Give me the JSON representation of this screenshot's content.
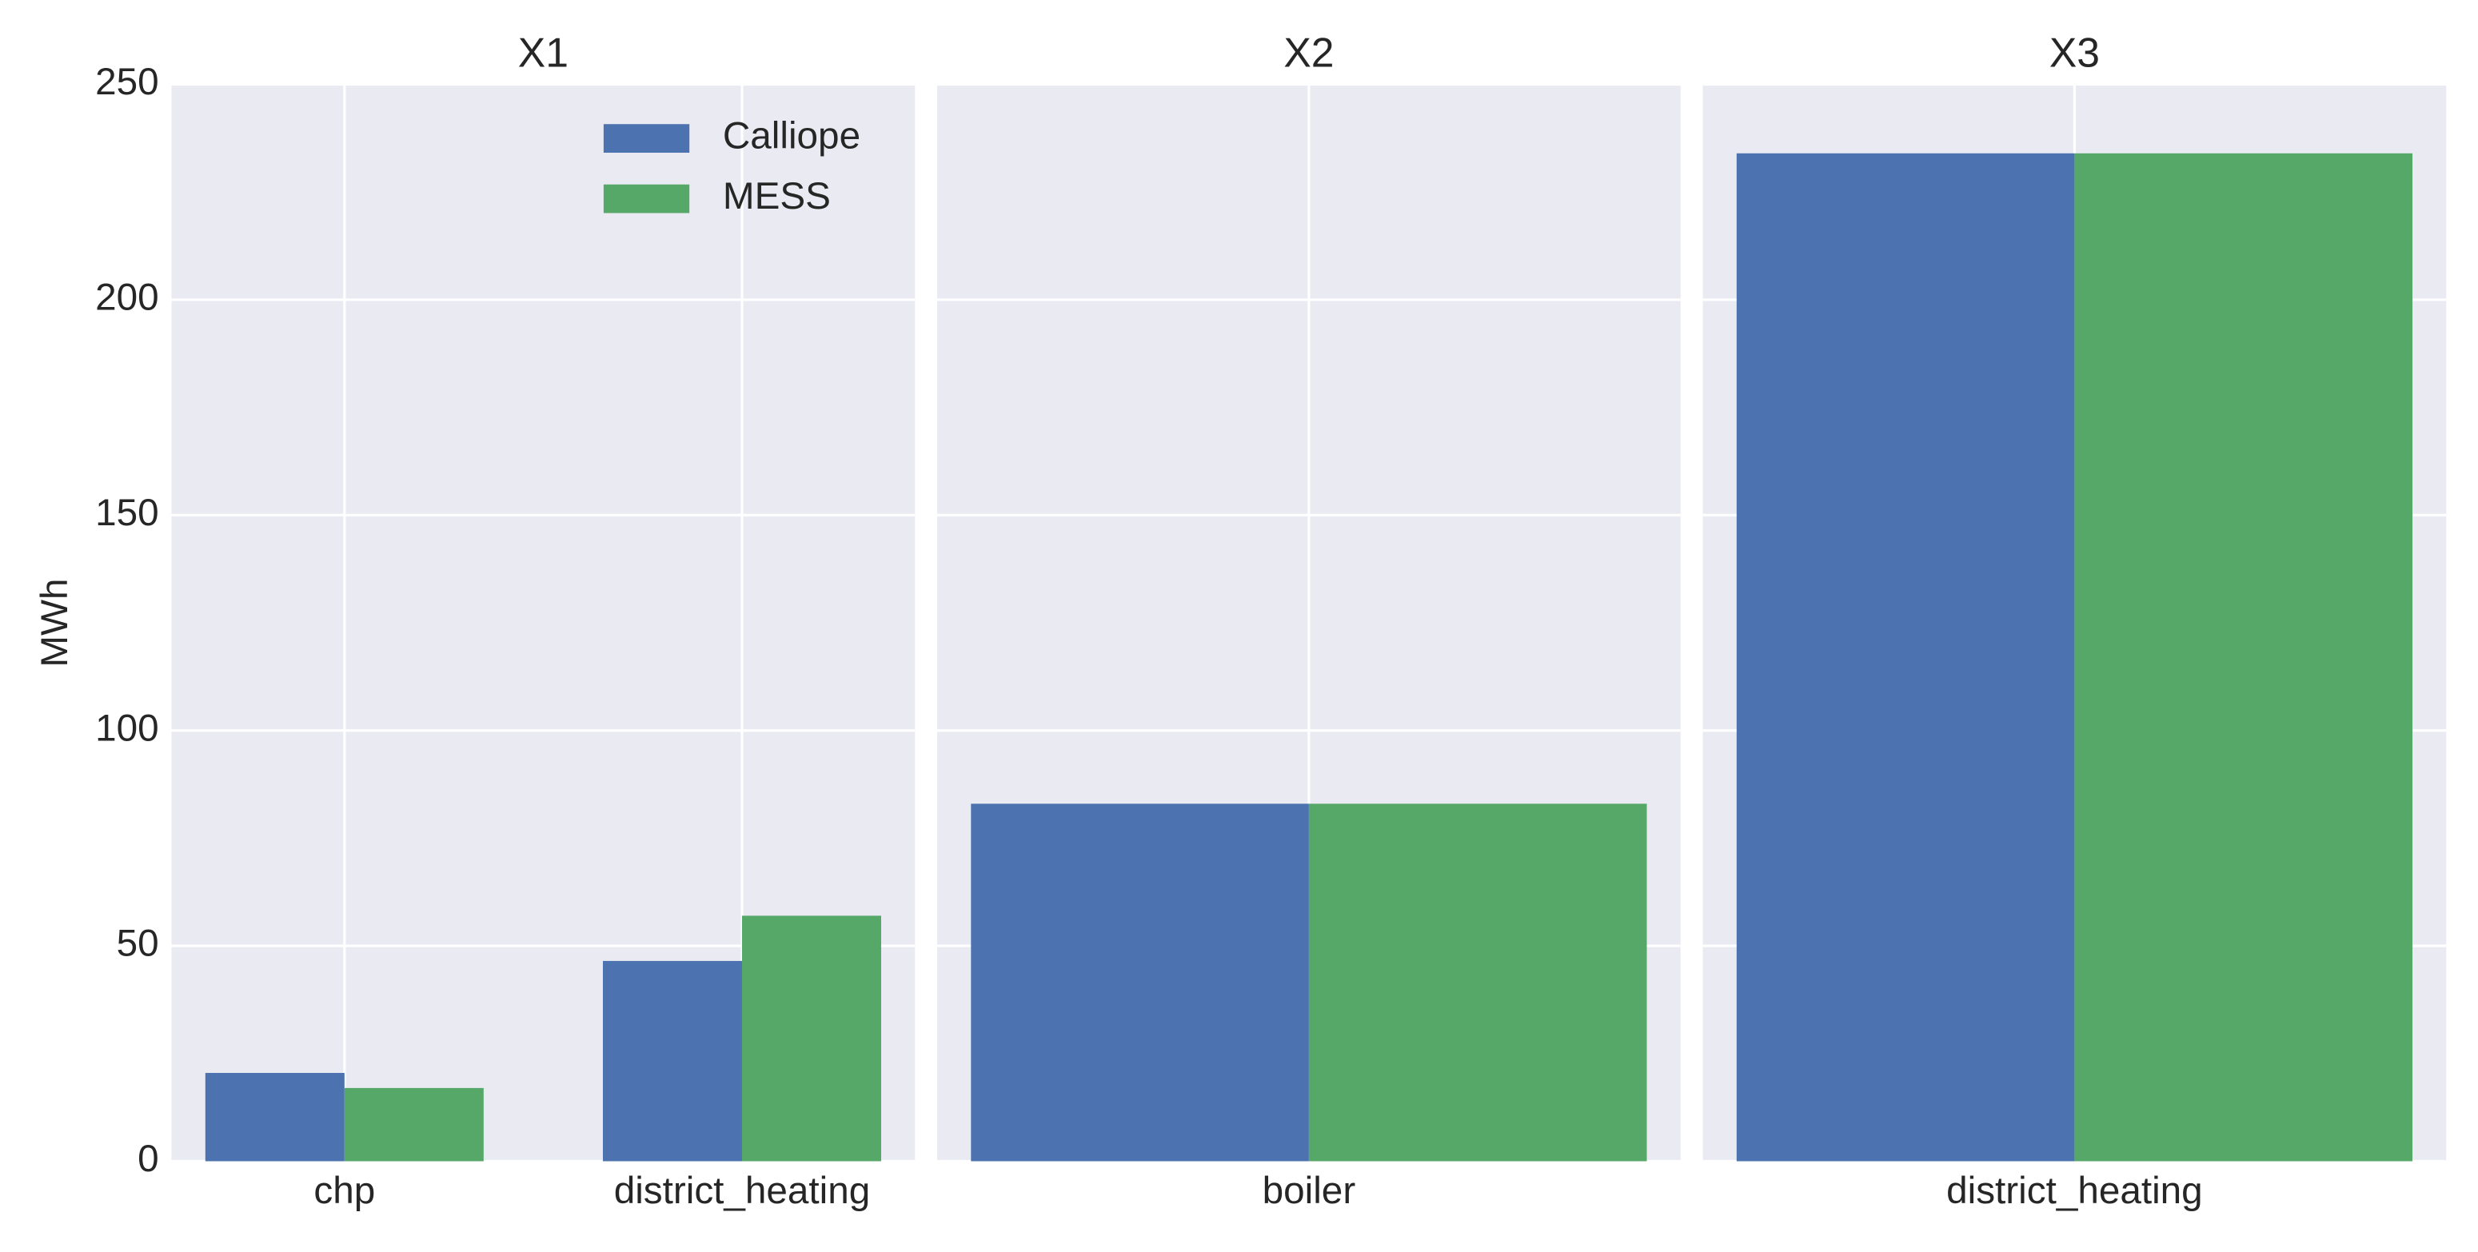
{
  "chart_data": [
    {
      "type": "bar",
      "title": "X1",
      "ylabel": "MWh",
      "categories": [
        "chp",
        "district_heating"
      ],
      "series": [
        {
          "name": "Calliope",
          "color": "#4c72b0",
          "values": [
            20.5,
            46.5
          ]
        },
        {
          "name": "MESS",
          "color": "#55a868",
          "values": [
            17,
            57
          ]
        }
      ],
      "ylim": [
        0,
        250
      ],
      "yticks": [
        0,
        50,
        100,
        150,
        200,
        250
      ],
      "grid": true,
      "legend": "upper right"
    },
    {
      "type": "bar",
      "title": "X2",
      "categories": [
        "boiler"
      ],
      "series": [
        {
          "color": "#4c72b0",
          "values": [
            83
          ]
        },
        {
          "color": "#55a868",
          "values": [
            83
          ]
        }
      ],
      "ylim": [
        0,
        250
      ],
      "yticks": [
        0,
        50,
        100,
        150,
        200,
        250
      ],
      "grid": true
    },
    {
      "type": "bar",
      "title": "X3",
      "categories": [
        "district_heating"
      ],
      "series": [
        {
          "color": "#4c72b0",
          "values": [
            234
          ]
        },
        {
          "color": "#55a868",
          "values": [
            234
          ]
        }
      ],
      "ylim": [
        0,
        250
      ],
      "yticks": [
        0,
        50,
        100,
        150,
        200,
        250
      ],
      "grid": true
    }
  ]
}
